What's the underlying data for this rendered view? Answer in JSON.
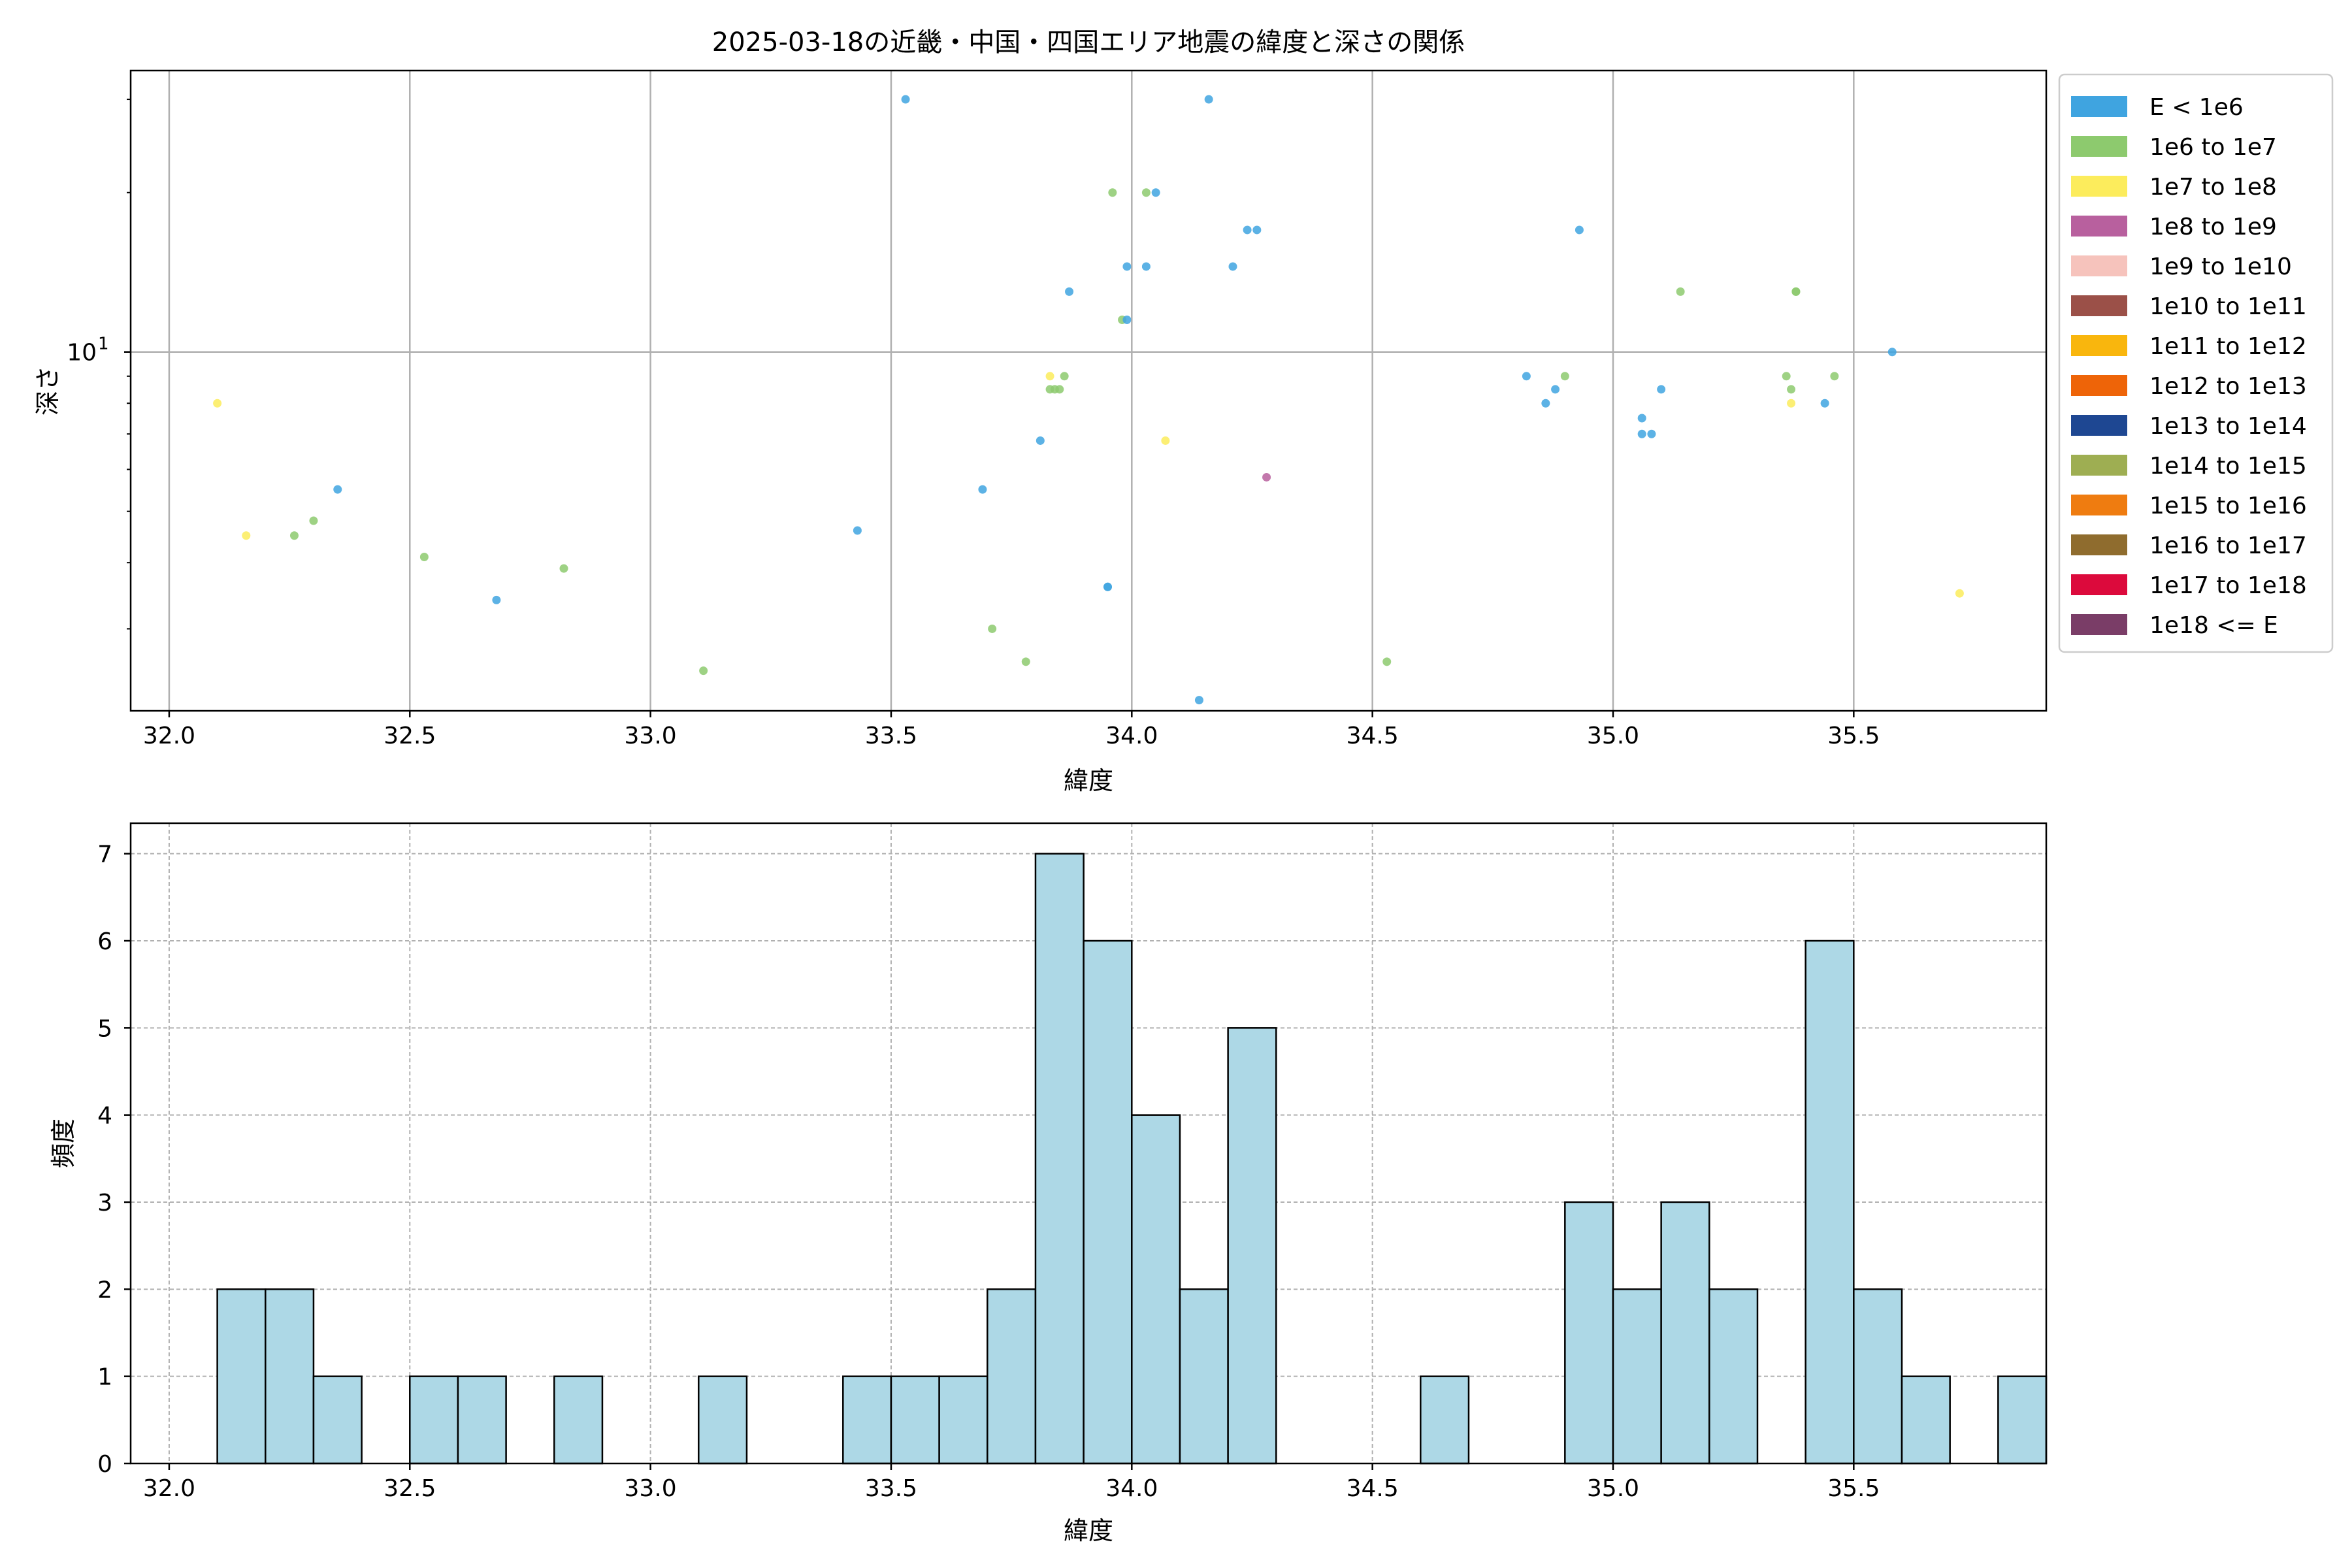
{
  "chart_data": [
    {
      "type": "scatter",
      "title": "2025-03-18の近畿・中国・四国エリア地震の緯度と深さの関係",
      "xlabel": "緯度",
      "ylabel": "深さ",
      "xlim": [
        31.92,
        35.9
      ],
      "ylim": [
        2.1,
        34
      ],
      "yscale": "log",
      "grid": true,
      "x_ticks": [
        "32.0",
        "32.5",
        "33.0",
        "33.5",
        "34.0",
        "34.5",
        "35.0",
        "35.5"
      ],
      "x_tick_values": [
        32.0,
        32.5,
        33.0,
        33.5,
        34.0,
        34.5,
        35.0,
        35.5
      ],
      "y_ticks": [
        {
          "value": 10,
          "base": "10",
          "exp": "1"
        }
      ],
      "legend_position": "right, outside plot",
      "legend": [
        {
          "label": "E < 1e6",
          "color": "#3fa4e0"
        },
        {
          "label": "1e6 to 1e7",
          "color": "#8dca6e"
        },
        {
          "label": "1e7 to 1e8",
          "color": "#fcec5c"
        },
        {
          "label": "1e8 to 1e9",
          "color": "#b8609e"
        },
        {
          "label": "1e9 to 1e10",
          "color": "#f6c3bc"
        },
        {
          "label": "1e10 to 1e11",
          "color": "#9b5048"
        },
        {
          "label": "1e11 to 1e12",
          "color": "#f9b60d"
        },
        {
          "label": "1e12 to 1e13",
          "color": "#ee6408"
        },
        {
          "label": "1e13 to 1e14",
          "color": "#1e4792"
        },
        {
          "label": "1e14 to 1e15",
          "color": "#9eae52"
        },
        {
          "label": "1e15 to 1e16",
          "color": "#ef7c10"
        },
        {
          "label": "1e16 to 1e17",
          "color": "#8f6c2e"
        },
        {
          "label": "1e17 to 1e18",
          "color": "#dc0a3c"
        },
        {
          "label": "1e18 <= E",
          "color": "#7a3d67"
        }
      ],
      "points": [
        {
          "x": 32.1,
          "y": 8.0,
          "c": 2
        },
        {
          "x": 32.16,
          "y": 4.5,
          "c": 2
        },
        {
          "x": 32.26,
          "y": 4.5,
          "c": 1
        },
        {
          "x": 32.3,
          "y": 4.8,
          "c": 1
        },
        {
          "x": 32.35,
          "y": 5.5,
          "c": 0
        },
        {
          "x": 32.53,
          "y": 4.1,
          "c": 1
        },
        {
          "x": 32.68,
          "y": 3.4,
          "c": 0
        },
        {
          "x": 32.82,
          "y": 3.9,
          "c": 1
        },
        {
          "x": 33.11,
          "y": 2.5,
          "c": 1
        },
        {
          "x": 33.43,
          "y": 4.6,
          "c": 0
        },
        {
          "x": 33.53,
          "y": 30.0,
          "c": 0
        },
        {
          "x": 33.69,
          "y": 5.5,
          "c": 0
        },
        {
          "x": 33.71,
          "y": 3.0,
          "c": 1
        },
        {
          "x": 33.78,
          "y": 2.6,
          "c": 1
        },
        {
          "x": 33.81,
          "y": 6.8,
          "c": 0
        },
        {
          "x": 33.83,
          "y": 9.0,
          "c": 2
        },
        {
          "x": 33.83,
          "y": 8.5,
          "c": 1
        },
        {
          "x": 33.84,
          "y": 8.5,
          "c": 1
        },
        {
          "x": 33.85,
          "y": 8.5,
          "c": 1
        },
        {
          "x": 33.86,
          "y": 9.0,
          "c": 1
        },
        {
          "x": 33.87,
          "y": 13.0,
          "c": 0
        },
        {
          "x": 33.95,
          "y": 3.6,
          "c": 0
        },
        {
          "x": 33.95,
          "y": 3.6,
          "c": 0
        },
        {
          "x": 33.96,
          "y": 20.0,
          "c": 1
        },
        {
          "x": 33.98,
          "y": 11.5,
          "c": 1
        },
        {
          "x": 33.99,
          "y": 14.5,
          "c": 0
        },
        {
          "x": 33.99,
          "y": 11.5,
          "c": 0
        },
        {
          "x": 34.03,
          "y": 20.0,
          "c": 1
        },
        {
          "x": 34.03,
          "y": 14.5,
          "c": 0
        },
        {
          "x": 34.05,
          "y": 20.0,
          "c": 0
        },
        {
          "x": 34.07,
          "y": 6.8,
          "c": 2
        },
        {
          "x": 34.14,
          "y": 2.2,
          "c": 0
        },
        {
          "x": 34.16,
          "y": 30.0,
          "c": 0
        },
        {
          "x": 34.21,
          "y": 14.5,
          "c": 0
        },
        {
          "x": 34.24,
          "y": 17.0,
          "c": 0
        },
        {
          "x": 34.26,
          "y": 17.0,
          "c": 0
        },
        {
          "x": 34.28,
          "y": 5.8,
          "c": 3
        },
        {
          "x": 34.53,
          "y": 2.6,
          "c": 1
        },
        {
          "x": 34.82,
          "y": 9.0,
          "c": 0
        },
        {
          "x": 34.86,
          "y": 8.0,
          "c": 0
        },
        {
          "x": 34.88,
          "y": 8.5,
          "c": 0
        },
        {
          "x": 34.9,
          "y": 9.0,
          "c": 1
        },
        {
          "x": 34.93,
          "y": 17.0,
          "c": 0
        },
        {
          "x": 35.06,
          "y": 7.5,
          "c": 0
        },
        {
          "x": 35.06,
          "y": 7.0,
          "c": 0
        },
        {
          "x": 35.08,
          "y": 7.0,
          "c": 0
        },
        {
          "x": 35.1,
          "y": 8.5,
          "c": 0
        },
        {
          "x": 35.14,
          "y": 13.0,
          "c": 1
        },
        {
          "x": 35.36,
          "y": 9.0,
          "c": 1
        },
        {
          "x": 35.37,
          "y": 8.5,
          "c": 1
        },
        {
          "x": 35.37,
          "y": 8.0,
          "c": 2
        },
        {
          "x": 35.38,
          "y": 13.0,
          "c": 1
        },
        {
          "x": 35.38,
          "y": 13.0,
          "c": 1
        },
        {
          "x": 35.44,
          "y": 8.0,
          "c": 0
        },
        {
          "x": 35.46,
          "y": 9.0,
          "c": 1
        },
        {
          "x": 35.58,
          "y": 10.0,
          "c": 0
        },
        {
          "x": 35.72,
          "y": 3.5,
          "c": 2
        }
      ]
    },
    {
      "type": "bar",
      "title": "",
      "xlabel": "緯度",
      "ylabel": "頻度",
      "xlim": [
        31.92,
        35.9
      ],
      "ylim": [
        0,
        7.35
      ],
      "grid": true,
      "bar_color": "#add8e6",
      "x_ticks": [
        "32.0",
        "32.5",
        "33.0",
        "33.5",
        "34.0",
        "34.5",
        "35.0",
        "35.5"
      ],
      "x_tick_values": [
        32.0,
        32.5,
        33.0,
        33.5,
        34.0,
        34.5,
        35.0,
        35.5
      ],
      "y_ticks": [
        "0",
        "1",
        "2",
        "3",
        "4",
        "5",
        "6",
        "7"
      ],
      "bin_start": 32.1,
      "bin_width": 0.1,
      "values": [
        2,
        2,
        1,
        0,
        1,
        1,
        0,
        1,
        0,
        0,
        1,
        0,
        0,
        1,
        1,
        1,
        2,
        7,
        6,
        4,
        2,
        5,
        0,
        0,
        0,
        1,
        0,
        0,
        3,
        2,
        3,
        2,
        0,
        6,
        2,
        1,
        0,
        1
      ]
    }
  ]
}
